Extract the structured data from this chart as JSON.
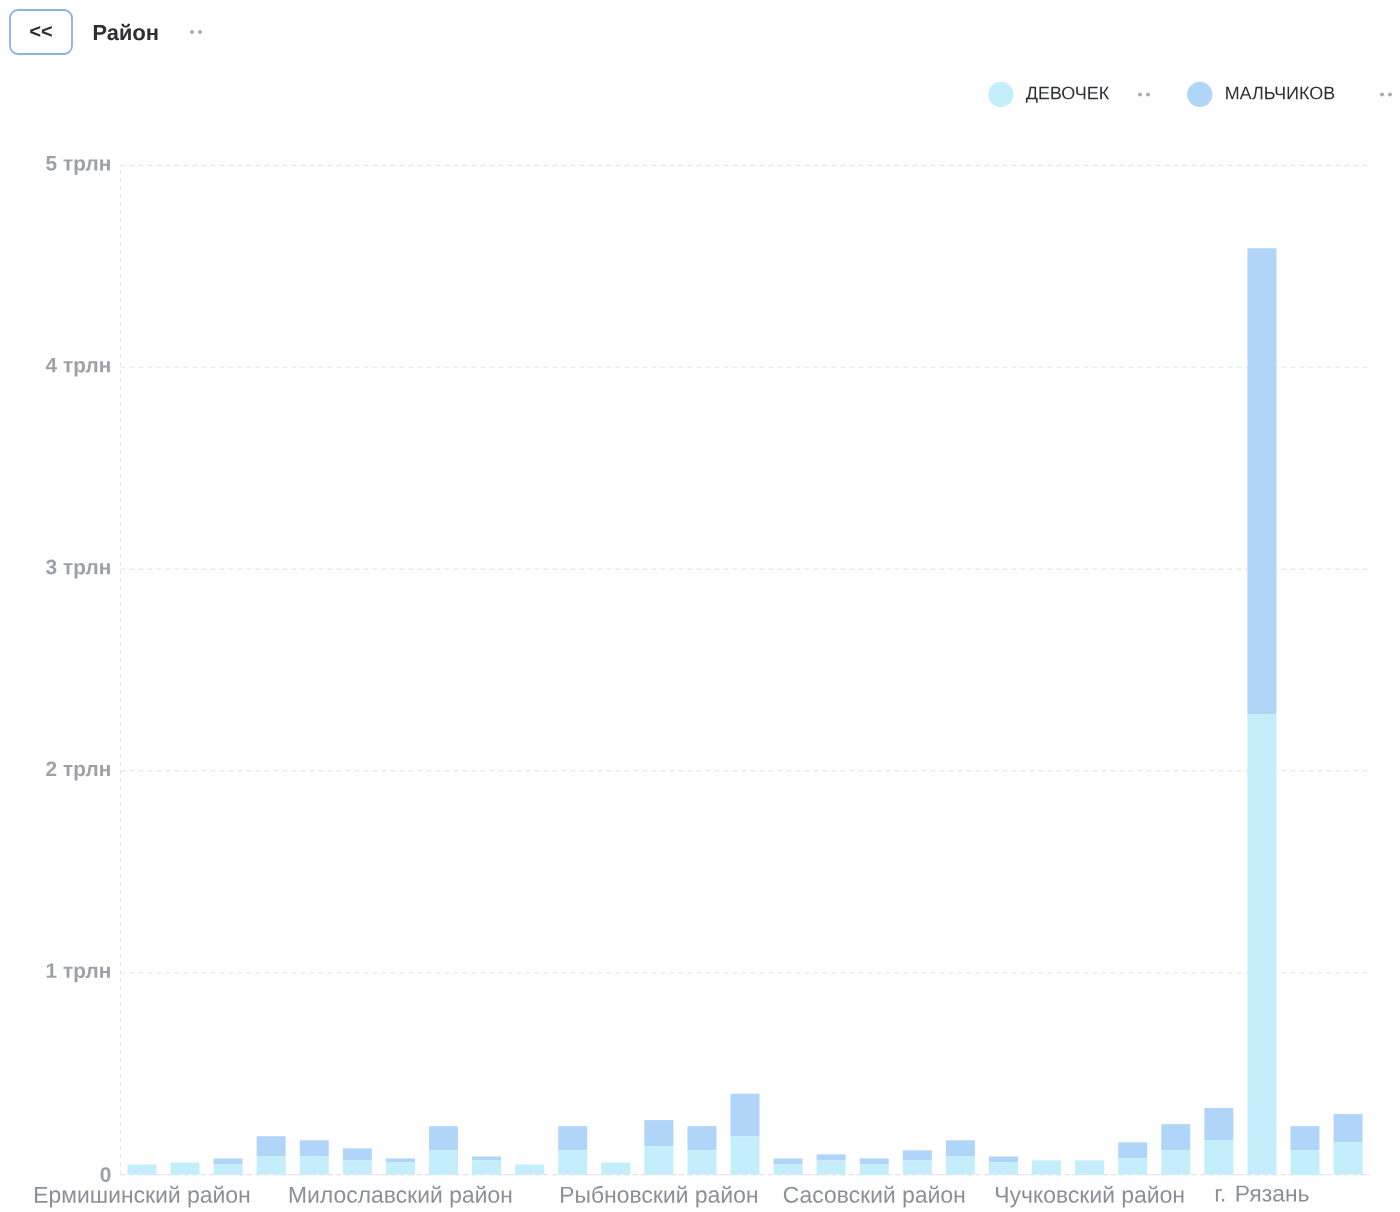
{
  "chart_data": {
    "type": "bar",
    "title": "Район",
    "annotations": [
      "<<"
    ],
    "categories": [
      "Ермишинский район",
      null,
      null,
      null,
      null,
      null,
      "Милославский район",
      null,
      null,
      null,
      null,
      null,
      "Рыбновский район",
      null,
      null,
      null,
      null,
      "Сасовский район",
      null,
      null,
      null,
      null,
      "Чучковский район",
      null,
      null,
      null,
      "г. Рязань",
      null,
      null
    ],
    "series": [
      {
        "name": "ДЕВОЧЕК",
        "color": "#c4eefb",
        "values": [
          0.05,
          0.06,
          0.05,
          0.09,
          0.09,
          0.07,
          0.06,
          0.12,
          0.07,
          0.05,
          0.12,
          0.06,
          0.14,
          0.12,
          0.19,
          0.05,
          0.07,
          0.05,
          0.07,
          0.09,
          0.06,
          0.07,
          0.07,
          0.08,
          0.12,
          0.17,
          2.28,
          0.12,
          0.16
        ]
      },
      {
        "name": "МАЛЬЧИКОВ",
        "color": "#b1d5f9",
        "values": [
          0,
          0,
          0.03,
          0.1,
          0.08,
          0.06,
          0.02,
          0.12,
          0.02,
          0,
          0.12,
          0,
          0.13,
          0.12,
          0.21,
          0.03,
          0.03,
          0.03,
          0.05,
          0.08,
          0.03,
          0,
          0,
          0.08,
          0.13,
          0.16,
          2.31,
          0.12,
          0.14
        ]
      }
    ],
    "stacked": true,
    "ylim": [
      0,
      5
    ],
    "yticks": [
      0,
      {
        "value": 1,
        "label": "1 трлн"
      },
      {
        "value": 2,
        "label": "2 трлн"
      },
      {
        "value": 3,
        "label": "3 трлн"
      },
      {
        "value": 4,
        "label": "4 трлн"
      },
      {
        "value": 5,
        "label": "5 трлн"
      }
    ],
    "grid": "y",
    "legend": "top right"
  }
}
